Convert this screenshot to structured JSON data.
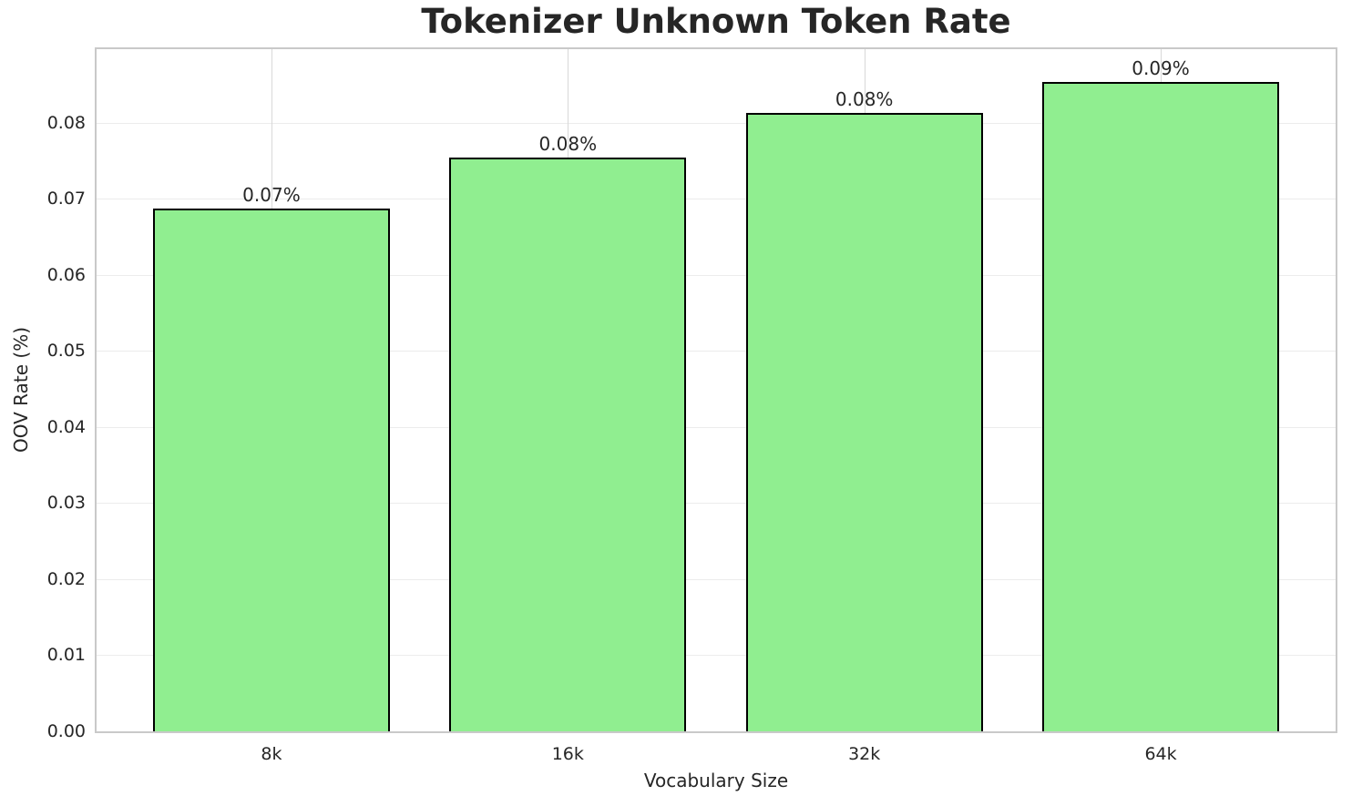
{
  "chart_data": {
    "type": "bar",
    "title": "Tokenizer Unknown Token Rate",
    "xlabel": "Vocabulary Size",
    "ylabel": "OOV Rate (%)",
    "categories": [
      "8k",
      "16k",
      "32k",
      "64k"
    ],
    "values": [
      0.0687,
      0.0755,
      0.0813,
      0.0854
    ],
    "bar_labels": [
      "0.07%",
      "0.08%",
      "0.08%",
      "0.09%"
    ],
    "ylim": [
      0,
      0.0897
    ],
    "ytick_values": [
      0.0,
      0.01,
      0.02,
      0.03,
      0.04,
      0.05,
      0.06,
      0.07,
      0.08
    ],
    "ytick_labels": [
      "0.00",
      "0.01",
      "0.02",
      "0.03",
      "0.04",
      "0.05",
      "0.06",
      "0.07",
      "0.08"
    ],
    "grid": true,
    "legend_position": "none",
    "colors": {
      "bar_fill": "#90EE90",
      "bar_edge": "#000000",
      "grid_horizontal": "#ececec",
      "grid_vertical": "#d8d8d8",
      "spine": "#c9c9c9",
      "text": "#262626",
      "background": "#ffffff"
    }
  }
}
